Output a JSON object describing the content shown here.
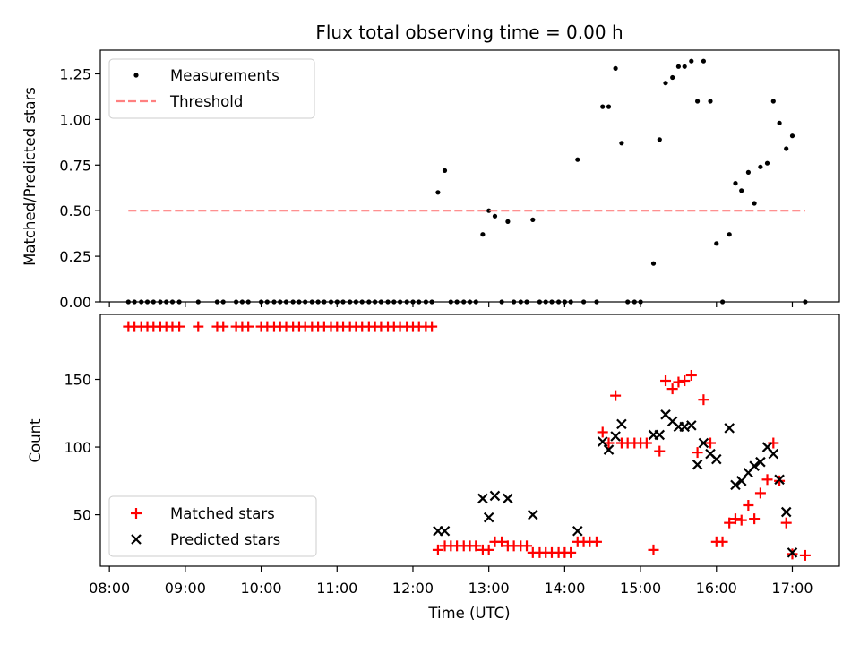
{
  "colors": {
    "measurement": "#000000",
    "threshold": "#ff8080",
    "matched": "#ff0000",
    "predicted": "#000000"
  },
  "chart_data": [
    {
      "type": "scatter",
      "title": "Flux total observing time = 0.00 h",
      "xlabel": "",
      "ylabel": "Matched/Predicted stars",
      "xlim": [
        7.88,
        17.62
      ],
      "ylim": [
        0,
        1.38
      ],
      "x_ticks": [
        8,
        9,
        10,
        11,
        12,
        13,
        14,
        15,
        16,
        17
      ],
      "y_ticks": [
        0,
        0.25,
        0.5,
        0.75,
        1.0,
        1.25
      ],
      "y_tick_labels": [
        "0.00",
        "0.25",
        "0.50",
        "0.75",
        "1.00",
        "1.25"
      ],
      "legend": [
        "Measurements",
        "Threshold"
      ],
      "legend_position": "top-left",
      "threshold": {
        "value": 0.5,
        "x_start": 8.25,
        "x_end": 17.17
      },
      "series": [
        {
          "name": "Measurements",
          "points": [
            [
              8.25,
              0
            ],
            [
              8.33,
              0
            ],
            [
              8.42,
              0
            ],
            [
              8.5,
              0
            ],
            [
              8.58,
              0
            ],
            [
              8.67,
              0
            ],
            [
              8.75,
              0
            ],
            [
              8.83,
              0
            ],
            [
              8.92,
              0
            ],
            [
              9.17,
              0
            ],
            [
              9.42,
              0
            ],
            [
              9.5,
              0
            ],
            [
              9.67,
              0
            ],
            [
              9.75,
              0
            ],
            [
              9.83,
              0
            ],
            [
              10.0,
              0
            ],
            [
              10.08,
              0
            ],
            [
              10.17,
              0
            ],
            [
              10.25,
              0
            ],
            [
              10.33,
              0
            ],
            [
              10.42,
              0
            ],
            [
              10.5,
              0
            ],
            [
              10.58,
              0
            ],
            [
              10.67,
              0
            ],
            [
              10.75,
              0
            ],
            [
              10.83,
              0
            ],
            [
              10.92,
              0
            ],
            [
              11.0,
              0
            ],
            [
              11.08,
              0
            ],
            [
              11.17,
              0
            ],
            [
              11.25,
              0
            ],
            [
              11.33,
              0
            ],
            [
              11.42,
              0
            ],
            [
              11.5,
              0
            ],
            [
              11.58,
              0
            ],
            [
              11.67,
              0
            ],
            [
              11.75,
              0
            ],
            [
              11.83,
              0
            ],
            [
              11.92,
              0
            ],
            [
              12.0,
              0
            ],
            [
              12.08,
              0
            ],
            [
              12.17,
              0
            ],
            [
              12.25,
              0
            ],
            [
              12.33,
              0.6
            ],
            [
              12.42,
              0.72
            ],
            [
              12.5,
              0
            ],
            [
              12.58,
              0
            ],
            [
              12.67,
              0
            ],
            [
              12.75,
              0
            ],
            [
              12.83,
              0
            ],
            [
              12.92,
              0.37
            ],
            [
              13.0,
              0.5
            ],
            [
              13.08,
              0.47
            ],
            [
              13.17,
              0
            ],
            [
              13.25,
              0.44
            ],
            [
              13.33,
              0
            ],
            [
              13.42,
              0
            ],
            [
              13.5,
              0
            ],
            [
              13.58,
              0.45
            ],
            [
              13.67,
              0
            ],
            [
              13.75,
              0
            ],
            [
              13.83,
              0
            ],
            [
              13.92,
              0
            ],
            [
              14.0,
              0
            ],
            [
              14.08,
              0
            ],
            [
              14.17,
              0.78
            ],
            [
              14.25,
              0
            ],
            [
              14.42,
              0
            ],
            [
              14.5,
              1.07
            ],
            [
              14.58,
              1.07
            ],
            [
              14.67,
              1.28
            ],
            [
              14.75,
              0.87
            ],
            [
              14.83,
              0
            ],
            [
              14.92,
              0
            ],
            [
              15.0,
              0
            ],
            [
              15.17,
              0.21
            ],
            [
              15.25,
              0.89
            ],
            [
              15.33,
              1.2
            ],
            [
              15.42,
              1.23
            ],
            [
              15.5,
              1.29
            ],
            [
              15.58,
              1.29
            ],
            [
              15.67,
              1.32
            ],
            [
              15.75,
              1.1
            ],
            [
              15.83,
              1.32
            ],
            [
              15.92,
              1.1
            ],
            [
              16.0,
              0.32
            ],
            [
              16.08,
              0
            ],
            [
              16.17,
              0.37
            ],
            [
              16.25,
              0.65
            ],
            [
              16.33,
              0.61
            ],
            [
              16.42,
              0.71
            ],
            [
              16.5,
              0.54
            ],
            [
              16.58,
              0.74
            ],
            [
              16.67,
              0.76
            ],
            [
              16.75,
              1.1
            ],
            [
              16.83,
              0.98
            ],
            [
              16.92,
              0.84
            ],
            [
              17.0,
              0.91
            ],
            [
              17.17,
              0
            ]
          ]
        }
      ]
    },
    {
      "type": "scatter",
      "title": "",
      "xlabel": "Time (UTC)",
      "ylabel": "Count",
      "xlim": [
        7.88,
        17.62
      ],
      "ylim": [
        12,
        198
      ],
      "x_ticks": [
        8,
        9,
        10,
        11,
        12,
        13,
        14,
        15,
        16,
        17
      ],
      "x_tick_labels": [
        "08:00",
        "09:00",
        "10:00",
        "11:00",
        "12:00",
        "13:00",
        "14:00",
        "15:00",
        "16:00",
        "17:00"
      ],
      "y_ticks": [
        50,
        100,
        150
      ],
      "y_tick_labels": [
        "50",
        "100",
        "150"
      ],
      "legend": [
        "Matched stars",
        "Predicted stars"
      ],
      "legend_position": "bottom-left",
      "series": [
        {
          "name": "Matched stars",
          "marker": "plus",
          "points": [
            [
              8.25,
              189
            ],
            [
              8.33,
              189
            ],
            [
              8.42,
              189
            ],
            [
              8.5,
              189
            ],
            [
              8.58,
              189
            ],
            [
              8.67,
              189
            ],
            [
              8.75,
              189
            ],
            [
              8.83,
              189
            ],
            [
              8.92,
              189
            ],
            [
              9.17,
              189
            ],
            [
              9.42,
              189
            ],
            [
              9.5,
              189
            ],
            [
              9.67,
              189
            ],
            [
              9.75,
              189
            ],
            [
              9.83,
              189
            ],
            [
              10.0,
              189
            ],
            [
              10.08,
              189
            ],
            [
              10.17,
              189
            ],
            [
              10.25,
              189
            ],
            [
              10.33,
              189
            ],
            [
              10.42,
              189
            ],
            [
              10.5,
              189
            ],
            [
              10.58,
              189
            ],
            [
              10.67,
              189
            ],
            [
              10.75,
              189
            ],
            [
              10.83,
              189
            ],
            [
              10.92,
              189
            ],
            [
              11.0,
              189
            ],
            [
              11.08,
              189
            ],
            [
              11.17,
              189
            ],
            [
              11.25,
              189
            ],
            [
              11.33,
              189
            ],
            [
              11.42,
              189
            ],
            [
              11.5,
              189
            ],
            [
              11.58,
              189
            ],
            [
              11.67,
              189
            ],
            [
              11.75,
              189
            ],
            [
              11.83,
              189
            ],
            [
              11.92,
              189
            ],
            [
              12.0,
              189
            ],
            [
              12.08,
              189
            ],
            [
              12.17,
              189
            ],
            [
              12.25,
              189
            ],
            [
              12.33,
              24
            ],
            [
              12.42,
              27
            ],
            [
              12.5,
              27
            ],
            [
              12.58,
              27
            ],
            [
              12.67,
              27
            ],
            [
              12.75,
              27
            ],
            [
              12.83,
              27
            ],
            [
              12.92,
              24
            ],
            [
              13.0,
              24
            ],
            [
              13.08,
              30
            ],
            [
              13.17,
              30
            ],
            [
              13.25,
              27
            ],
            [
              13.33,
              27
            ],
            [
              13.42,
              27
            ],
            [
              13.5,
              27
            ],
            [
              13.58,
              22
            ],
            [
              13.67,
              22
            ],
            [
              13.75,
              22
            ],
            [
              13.83,
              22
            ],
            [
              13.92,
              22
            ],
            [
              14.0,
              22
            ],
            [
              14.08,
              22
            ],
            [
              14.17,
              30
            ],
            [
              14.25,
              30
            ],
            [
              14.33,
              30
            ],
            [
              14.42,
              30
            ],
            [
              14.5,
              111
            ],
            [
              14.58,
              103
            ],
            [
              14.67,
              138
            ],
            [
              14.75,
              103
            ],
            [
              14.83,
              103
            ],
            [
              14.92,
              103
            ],
            [
              15.0,
              103
            ],
            [
              15.08,
              103
            ],
            [
              15.17,
              24
            ],
            [
              15.25,
              97
            ],
            [
              15.33,
              149
            ],
            [
              15.42,
              143
            ],
            [
              15.5,
              148
            ],
            [
              15.58,
              149
            ],
            [
              15.67,
              153
            ],
            [
              15.75,
              96
            ],
            [
              15.83,
              135
            ],
            [
              15.92,
              103
            ],
            [
              16.0,
              30
            ],
            [
              16.08,
              30
            ],
            [
              16.17,
              44
            ],
            [
              16.25,
              47
            ],
            [
              16.33,
              46
            ],
            [
              16.42,
              57
            ],
            [
              16.5,
              47
            ],
            [
              16.58,
              66
            ],
            [
              16.67,
              76
            ],
            [
              16.75,
              103
            ],
            [
              16.83,
              75
            ],
            [
              16.92,
              44
            ],
            [
              17.0,
              21
            ],
            [
              17.17,
              20
            ]
          ]
        },
        {
          "name": "Predicted stars",
          "marker": "x",
          "points": [
            [
              12.33,
              38
            ],
            [
              12.42,
              38
            ],
            [
              12.92,
              62
            ],
            [
              13.0,
              48
            ],
            [
              13.08,
              64
            ],
            [
              13.25,
              62
            ],
            [
              13.58,
              50
            ],
            [
              14.17,
              38
            ],
            [
              14.5,
              104
            ],
            [
              14.58,
              98
            ],
            [
              14.67,
              108
            ],
            [
              14.75,
              117
            ],
            [
              15.17,
              109
            ],
            [
              15.25,
              109
            ],
            [
              15.33,
              124
            ],
            [
              15.42,
              119
            ],
            [
              15.5,
              115
            ],
            [
              15.58,
              115
            ],
            [
              15.67,
              116
            ],
            [
              15.75,
              87
            ],
            [
              15.83,
              103
            ],
            [
              15.92,
              95
            ],
            [
              16.0,
              91
            ],
            [
              16.17,
              114
            ],
            [
              16.25,
              72
            ],
            [
              16.33,
              75
            ],
            [
              16.42,
              81
            ],
            [
              16.5,
              86
            ],
            [
              16.58,
              89
            ],
            [
              16.67,
              100
            ],
            [
              16.75,
              95
            ],
            [
              16.83,
              76
            ],
            [
              16.92,
              52
            ],
            [
              17.0,
              22
            ]
          ]
        }
      ]
    }
  ]
}
